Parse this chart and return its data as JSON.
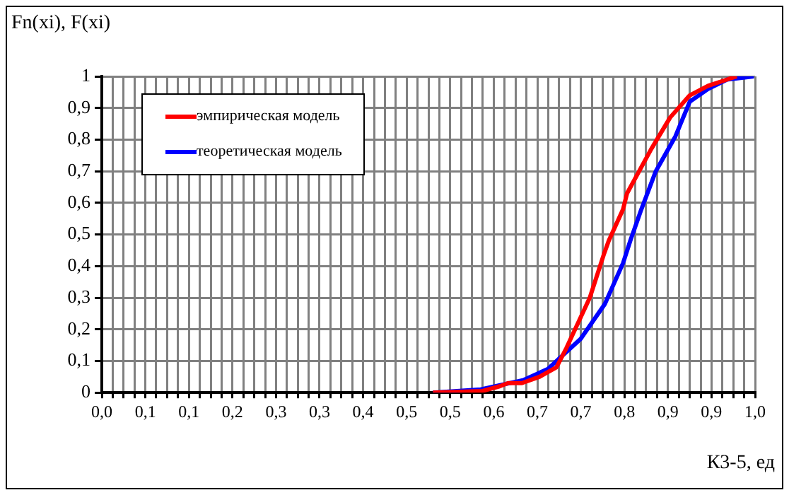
{
  "chart_data": {
    "type": "line",
    "xlabel": "К3-5, ед",
    "ylabel": "Fn(xi), F(xi)",
    "xlim": [
      0,
      1
    ],
    "ylim": [
      0,
      1
    ],
    "xticks": [
      {
        "value": 0,
        "label": "0,0"
      },
      {
        "value": 0.0167,
        "label": null
      },
      {
        "value": 0.0333,
        "label": null
      },
      {
        "value": 0.05,
        "label": null
      },
      {
        "value": 0.0667,
        "label": "0,1"
      },
      {
        "value": 0.0833,
        "label": null
      },
      {
        "value": 0.1,
        "label": null
      },
      {
        "value": 0.1167,
        "label": null
      },
      {
        "value": 0.1333,
        "label": "0,1"
      },
      {
        "value": 0.15,
        "label": null
      },
      {
        "value": 0.1667,
        "label": null
      },
      {
        "value": 0.1833,
        "label": null
      },
      {
        "value": 0.2,
        "label": "0,2"
      },
      {
        "value": 0.2167,
        "label": null
      },
      {
        "value": 0.2333,
        "label": null
      },
      {
        "value": 0.25,
        "label": null
      },
      {
        "value": 0.2667,
        "label": "0,3"
      },
      {
        "value": 0.2833,
        "label": null
      },
      {
        "value": 0.3,
        "label": null
      },
      {
        "value": 0.3167,
        "label": null
      },
      {
        "value": 0.3333,
        "label": "0,3"
      },
      {
        "value": 0.35,
        "label": null
      },
      {
        "value": 0.3667,
        "label": null
      },
      {
        "value": 0.3833,
        "label": null
      },
      {
        "value": 0.4,
        "label": "0,4"
      },
      {
        "value": 0.4167,
        "label": null
      },
      {
        "value": 0.4333,
        "label": null
      },
      {
        "value": 0.45,
        "label": null
      },
      {
        "value": 0.4667,
        "label": "0,5"
      },
      {
        "value": 0.4833,
        "label": null
      },
      {
        "value": 0.5,
        "label": null
      },
      {
        "value": 0.5167,
        "label": null
      },
      {
        "value": 0.5333,
        "label": "0,5"
      },
      {
        "value": 0.55,
        "label": null
      },
      {
        "value": 0.5667,
        "label": null
      },
      {
        "value": 0.5833,
        "label": null
      },
      {
        "value": 0.6,
        "label": "0,6"
      },
      {
        "value": 0.6167,
        "label": null
      },
      {
        "value": 0.6333,
        "label": null
      },
      {
        "value": 0.65,
        "label": null
      },
      {
        "value": 0.6667,
        "label": "0,7"
      },
      {
        "value": 0.6833,
        "label": null
      },
      {
        "value": 0.7,
        "label": null
      },
      {
        "value": 0.7167,
        "label": null
      },
      {
        "value": 0.7333,
        "label": "0,7"
      },
      {
        "value": 0.75,
        "label": null
      },
      {
        "value": 0.7667,
        "label": null
      },
      {
        "value": 0.7833,
        "label": null
      },
      {
        "value": 0.8,
        "label": "0,8"
      },
      {
        "value": 0.8167,
        "label": null
      },
      {
        "value": 0.8333,
        "label": null
      },
      {
        "value": 0.85,
        "label": null
      },
      {
        "value": 0.8667,
        "label": "0,9"
      },
      {
        "value": 0.8833,
        "label": null
      },
      {
        "value": 0.9,
        "label": null
      },
      {
        "value": 0.9167,
        "label": null
      },
      {
        "value": 0.9333,
        "label": "0,9"
      },
      {
        "value": 0.95,
        "label": null
      },
      {
        "value": 0.9667,
        "label": null
      },
      {
        "value": 0.9833,
        "label": null
      },
      {
        "value": 1,
        "label": "1,0"
      }
    ],
    "yticks": [
      0,
      {
        "value": 0.1,
        "label": "0,1"
      },
      {
        "value": 0.2,
        "label": "0,2"
      },
      {
        "value": 0.3,
        "label": "0,3"
      },
      {
        "value": 0.4,
        "label": "0,4"
      },
      {
        "value": 0.5,
        "label": "0,5"
      },
      {
        "value": 0.6,
        "label": "0,6"
      },
      {
        "value": 0.7,
        "label": "0,7"
      },
      {
        "value": 0.8,
        "label": "0,8"
      },
      {
        "value": 0.9,
        "label": "0,9"
      },
      1
    ],
    "grid": true,
    "legend": "top left",
    "series": [
      {
        "name": "эмпирическая модель",
        "color": "#ff0000",
        "x": [
          0.507,
          0.583,
          0.609,
          0.622,
          0.643,
          0.67,
          0.696,
          0.711,
          0.747,
          0.769,
          0.776,
          0.798,
          0.804,
          0.841,
          0.87,
          0.9,
          0.928,
          0.957,
          0.972
        ],
        "values": [
          0,
          0.005,
          0.02,
          0.03,
          0.03,
          0.05,
          0.08,
          0.14,
          0.3,
          0.44,
          0.48,
          0.58,
          0.63,
          0.77,
          0.87,
          0.94,
          0.97,
          0.99,
          1
        ]
      },
      {
        "name": "теоретическая модель",
        "color": "#0000ff",
        "x": [
          0.507,
          0.58,
          0.646,
          0.683,
          0.733,
          0.77,
          0.798,
          0.809,
          0.826,
          0.848,
          0.878,
          0.9,
          0.928,
          0.957,
          0.998
        ],
        "values": [
          0,
          0.01,
          0.04,
          0.075,
          0.17,
          0.28,
          0.41,
          0.48,
          0.58,
          0.7,
          0.81,
          0.92,
          0.96,
          0.99,
          1
        ]
      }
    ]
  }
}
